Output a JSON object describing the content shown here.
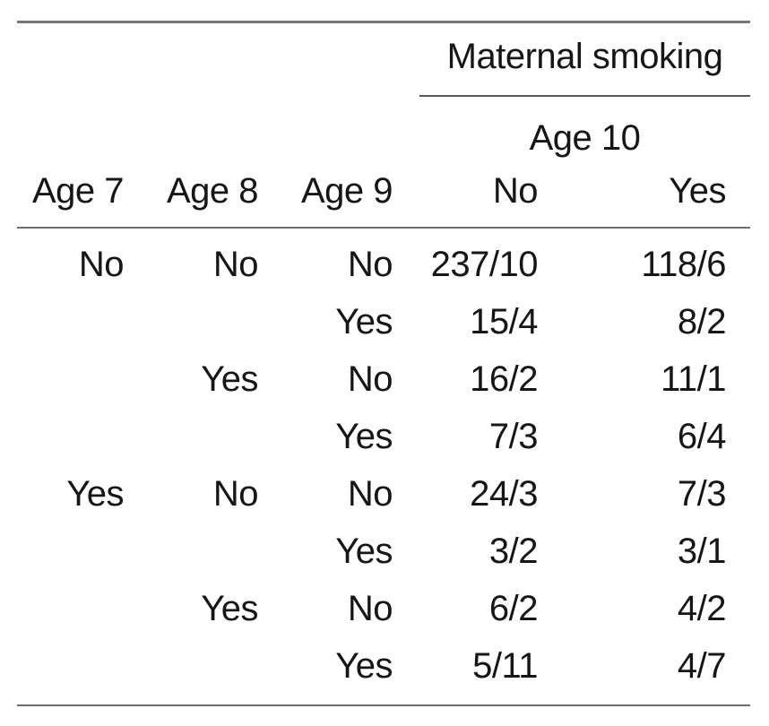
{
  "table": {
    "spanner_header": "Maternal smoking",
    "sub_spanner_header": "Age 10",
    "columns": [
      "Age 7",
      "Age 8",
      "Age 9",
      "No",
      "Yes"
    ],
    "rows": [
      [
        "No",
        "No",
        "No",
        "237/10",
        "118/6"
      ],
      [
        "",
        "",
        "Yes",
        "15/4",
        "8/2"
      ],
      [
        "",
        "Yes",
        "No",
        "16/2",
        "11/1"
      ],
      [
        "",
        "",
        "Yes",
        "7/3",
        "6/4"
      ],
      [
        "Yes",
        "No",
        "No",
        "24/3",
        "7/3"
      ],
      [
        "",
        "",
        "Yes",
        "3/2",
        "3/1"
      ],
      [
        "",
        "Yes",
        "No",
        "6/2",
        "4/2"
      ],
      [
        "",
        "",
        "Yes",
        "5/11",
        "4/7"
      ]
    ]
  },
  "colors": {
    "background": "#ffffff",
    "text": "#161616",
    "rule_gray": "#767676",
    "rule_dark": "#565656"
  }
}
